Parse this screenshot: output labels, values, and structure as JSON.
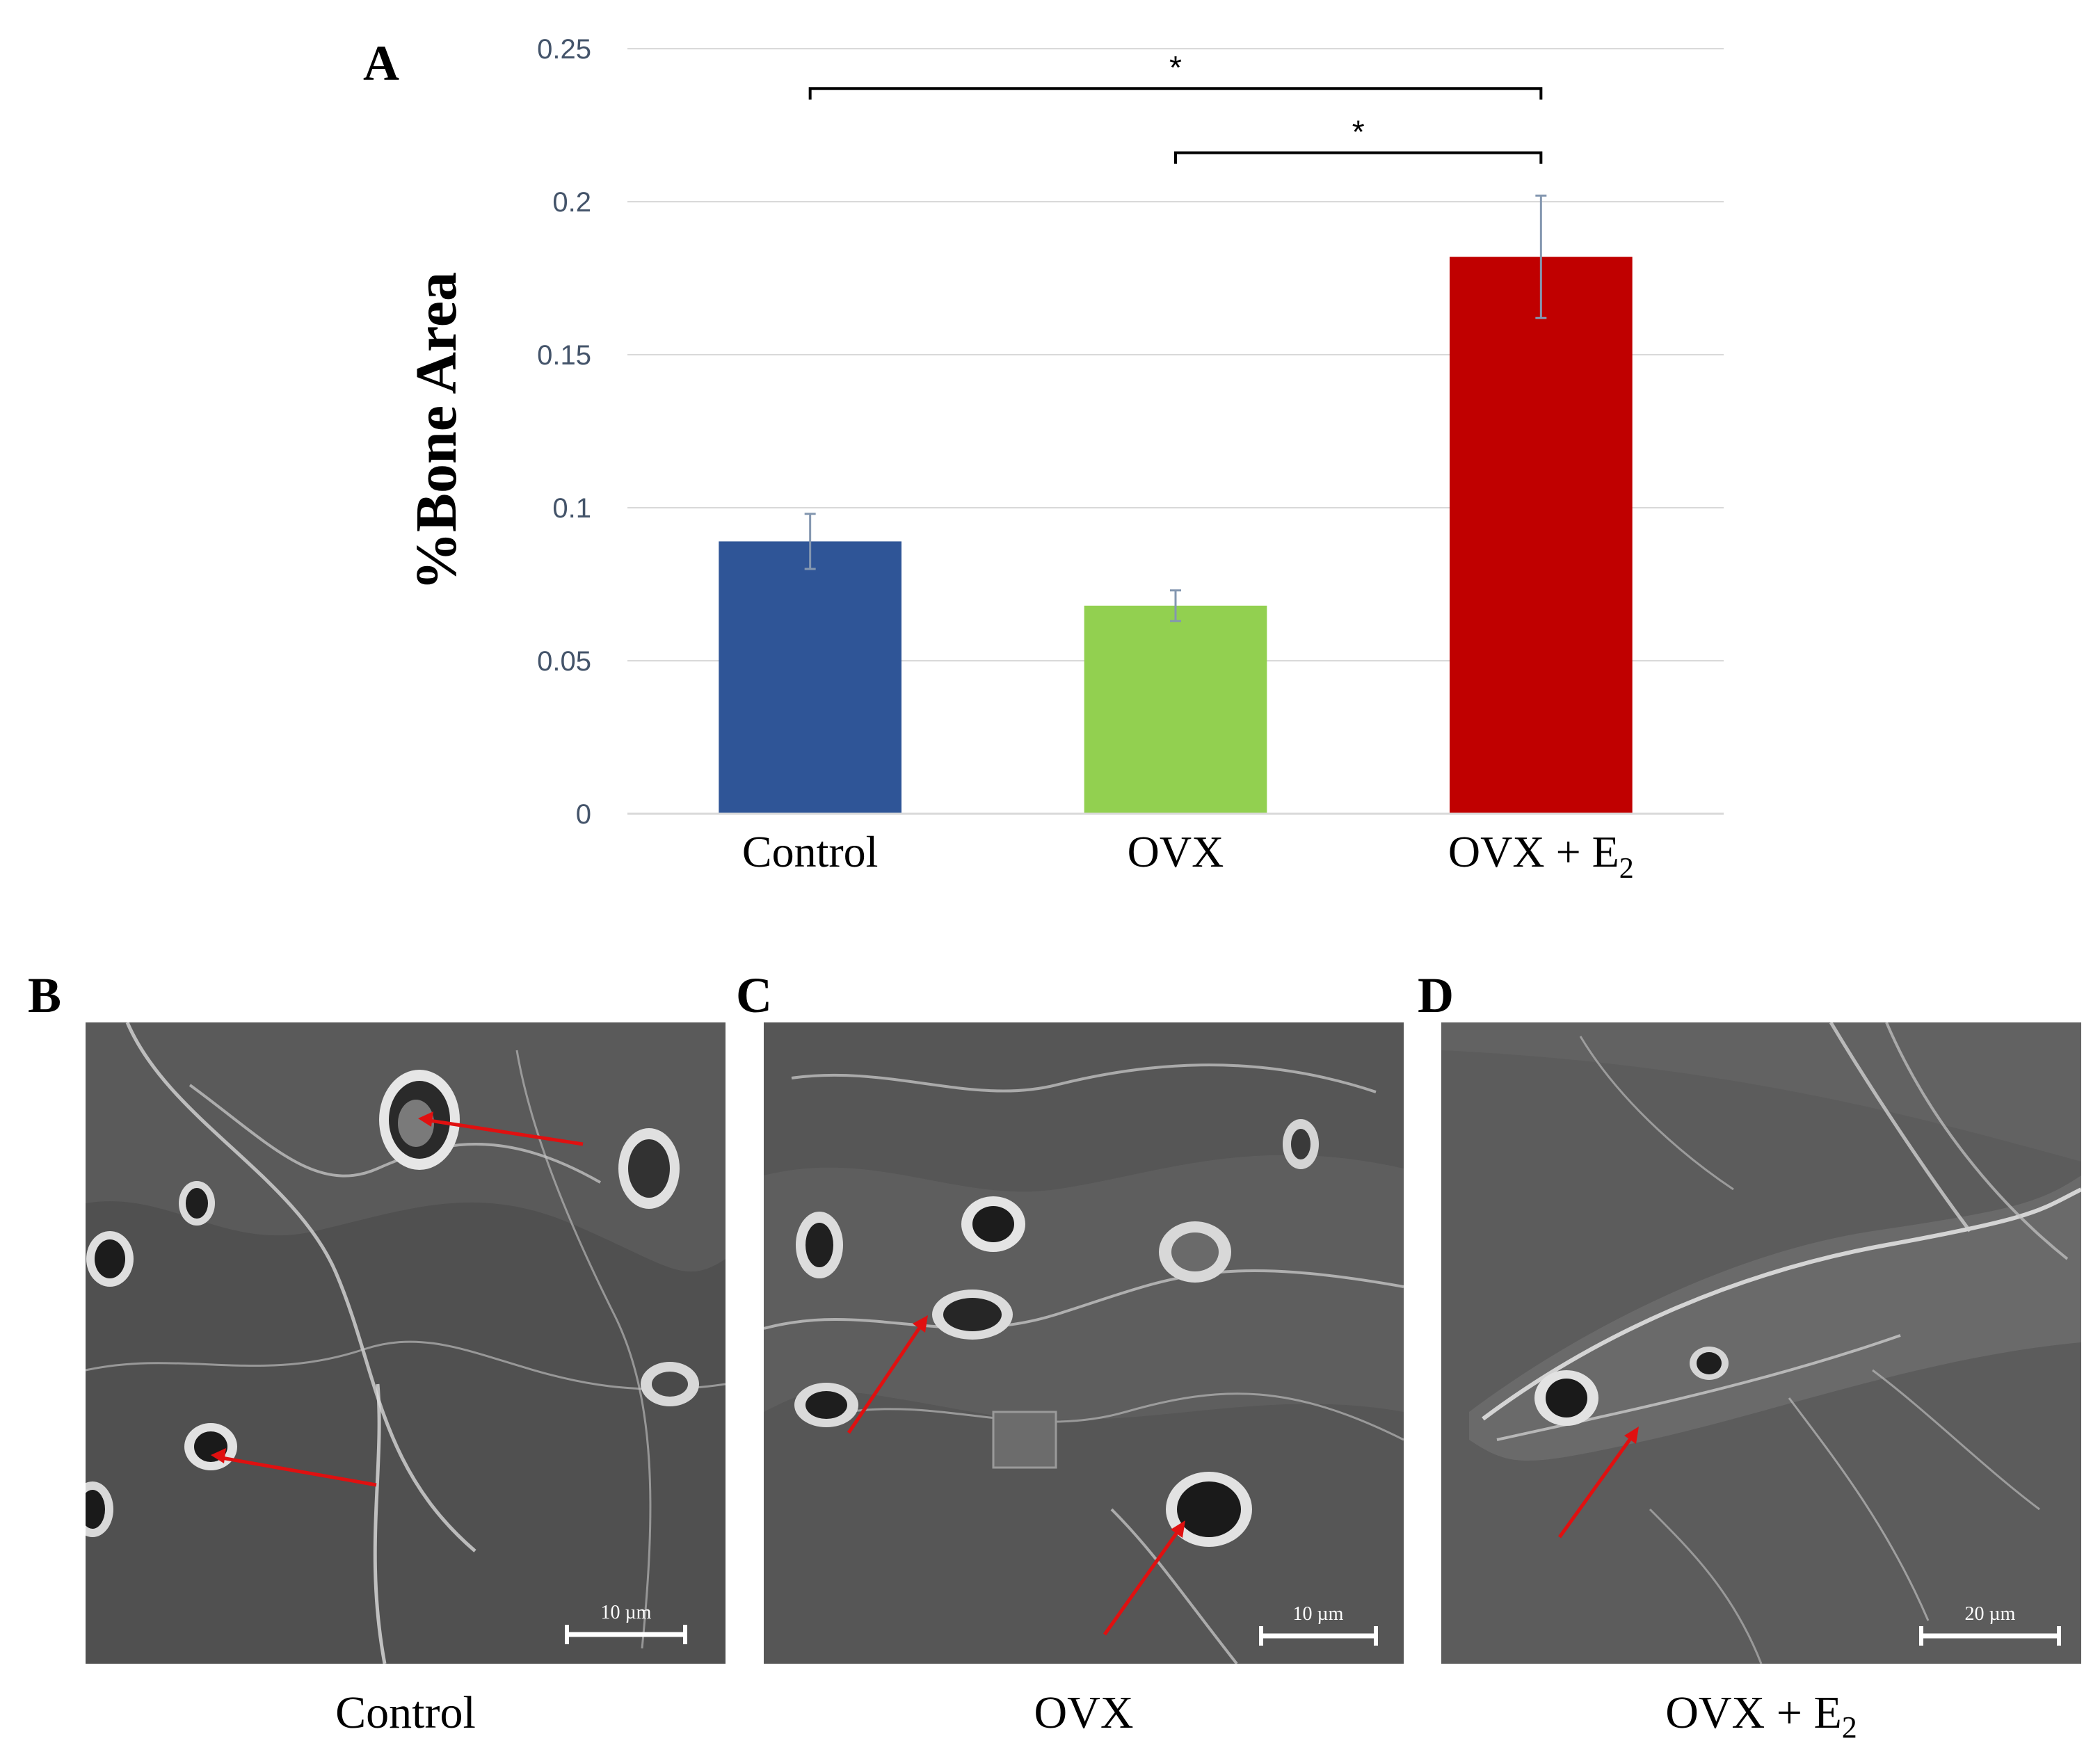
{
  "panels": {
    "a": {
      "letter": "A"
    },
    "b": {
      "letter": "B",
      "caption": "Control",
      "scale_label": "10 µm"
    },
    "c": {
      "letter": "C",
      "caption": "OVX",
      "scale_label": "10 µm"
    },
    "d": {
      "letter": "D",
      "caption_main": "OVX + E",
      "caption_sub": "2",
      "scale_label": "20 µm"
    }
  },
  "chart_data": {
    "type": "bar",
    "title": "",
    "xlabel": "",
    "ylabel": "%Bone Area",
    "ylim": [
      0,
      0.25
    ],
    "yticks": [
      0,
      0.05,
      0.1,
      0.15,
      0.2,
      0.25
    ],
    "ytick_labels": [
      "0",
      "0.05",
      "0.1",
      "0.15",
      "0.2",
      "0.25"
    ],
    "grid": true,
    "categories": [
      {
        "main": "Control",
        "sub": ""
      },
      {
        "main": "OVX",
        "sub": ""
      },
      {
        "main": "OVX + E",
        "sub": "2"
      }
    ],
    "values": [
      0.089,
      0.068,
      0.182
    ],
    "errors": [
      0.009,
      0.005,
      0.02
    ],
    "colors": [
      "#2F5597",
      "#92D050",
      "#C00000"
    ],
    "significance": [
      {
        "from": 0,
        "to": 2,
        "y": 0.237,
        "label": "*"
      },
      {
        "from": 1,
        "to": 2,
        "y": 0.216,
        "label": "*"
      }
    ]
  },
  "colors": {
    "axis_text": "#44546A",
    "gridline": "#D9D9D9",
    "arrow": "#E01010"
  }
}
